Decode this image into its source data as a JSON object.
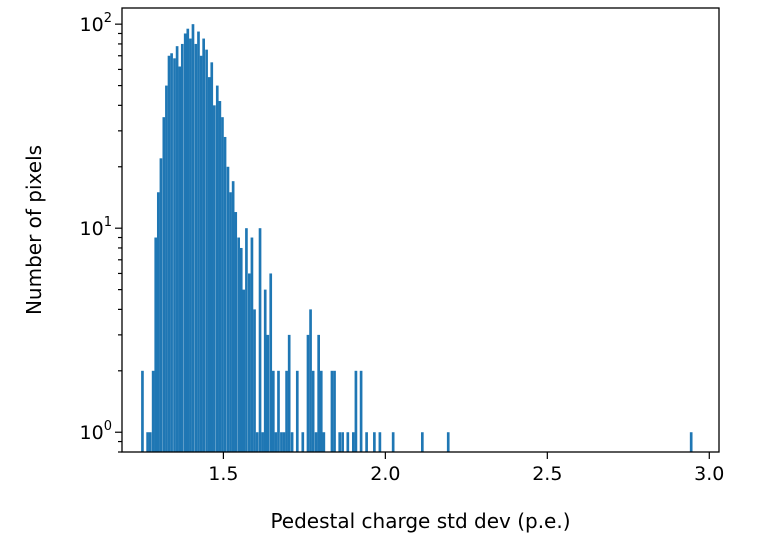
{
  "chart_data": {
    "type": "bar",
    "title": "",
    "xlabel": "Pedestal charge std dev (p.e.)",
    "ylabel": "Number of pixels",
    "xlim": [
      1.187,
      3.03
    ],
    "ylim": [
      0.8,
      120
    ],
    "yscale": "log",
    "grid": false,
    "bar_color": "#1f77b4",
    "bin_width": 0.00825,
    "x_ticks": [
      {
        "value": 1.5,
        "label": "1.5"
      },
      {
        "value": 2.0,
        "label": "2.0"
      },
      {
        "value": 2.5,
        "label": "2.5"
      },
      {
        "value": 3.0,
        "label": "3.0"
      }
    ],
    "y_ticks": [
      {
        "value": 1,
        "base": "10",
        "exp": "0"
      },
      {
        "value": 10,
        "base": "10",
        "exp": "1"
      },
      {
        "value": 100,
        "base": "10",
        "exp": "2"
      }
    ],
    "bins": [
      [
        1.246,
        2
      ],
      [
        1.262,
        1
      ],
      [
        1.27,
        1
      ],
      [
        1.279,
        2
      ],
      [
        1.287,
        9
      ],
      [
        1.295,
        15
      ],
      [
        1.303,
        22
      ],
      [
        1.312,
        35
      ],
      [
        1.32,
        50
      ],
      [
        1.328,
        70
      ],
      [
        1.336,
        72
      ],
      [
        1.345,
        68
      ],
      [
        1.353,
        78
      ],
      [
        1.361,
        62
      ],
      [
        1.369,
        80
      ],
      [
        1.378,
        90
      ],
      [
        1.386,
        95
      ],
      [
        1.394,
        85
      ],
      [
        1.402,
        100
      ],
      [
        1.411,
        80
      ],
      [
        1.419,
        92
      ],
      [
        1.427,
        70
      ],
      [
        1.435,
        85
      ],
      [
        1.444,
        75
      ],
      [
        1.452,
        55
      ],
      [
        1.46,
        65
      ],
      [
        1.468,
        40
      ],
      [
        1.477,
        50
      ],
      [
        1.485,
        42
      ],
      [
        1.493,
        35
      ],
      [
        1.501,
        28
      ],
      [
        1.51,
        20
      ],
      [
        1.518,
        15
      ],
      [
        1.526,
        17
      ],
      [
        1.534,
        12
      ],
      [
        1.543,
        9
      ],
      [
        1.551,
        8
      ],
      [
        1.559,
        5
      ],
      [
        1.567,
        10
      ],
      [
        1.576,
        6
      ],
      [
        1.584,
        9
      ],
      [
        1.592,
        4
      ],
      [
        1.6,
        1
      ],
      [
        1.609,
        10
      ],
      [
        1.617,
        1
      ],
      [
        1.625,
        5
      ],
      [
        1.633,
        3
      ],
      [
        1.642,
        6
      ],
      [
        1.65,
        2
      ],
      [
        1.658,
        1
      ],
      [
        1.666,
        2
      ],
      [
        1.675,
        1
      ],
      [
        1.683,
        1
      ],
      [
        1.691,
        2
      ],
      [
        1.699,
        3
      ],
      [
        1.708,
        1
      ],
      [
        1.724,
        2
      ],
      [
        1.741,
        1
      ],
      [
        1.757,
        3
      ],
      [
        1.765,
        4
      ],
      [
        1.773,
        2
      ],
      [
        1.782,
        1
      ],
      [
        1.79,
        3
      ],
      [
        1.798,
        2
      ],
      [
        1.806,
        1
      ],
      [
        1.831,
        2
      ],
      [
        1.839,
        2
      ],
      [
        1.855,
        1
      ],
      [
        1.864,
        1
      ],
      [
        1.88,
        1
      ],
      [
        1.897,
        1
      ],
      [
        1.905,
        2
      ],
      [
        1.921,
        2
      ],
      [
        1.938,
        1
      ],
      [
        1.962,
        1
      ],
      [
        1.979,
        1
      ],
      [
        2.02,
        1
      ],
      [
        2.11,
        1
      ],
      [
        2.19,
        1
      ],
      [
        2.94,
        1
      ]
    ]
  }
}
